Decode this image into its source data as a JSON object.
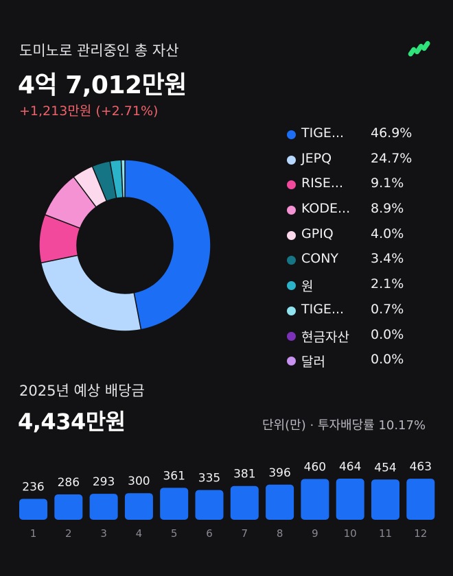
{
  "header": {
    "subtitle": "도미노로 관리중인 총 자산",
    "total": "4억 7,012만원",
    "change": "+1,213만원 (+2.71%)",
    "logo_icon": "app-logo-icon"
  },
  "legend": [
    {
      "name": "TIGE...",
      "pct": "46.9%",
      "color": "#1c6ef5"
    },
    {
      "name": "JEPQ",
      "pct": "24.7%",
      "color": "#b6d8ff"
    },
    {
      "name": "RISE...",
      "pct": "9.1%",
      "color": "#f3499d"
    },
    {
      "name": "KODE...",
      "pct": "8.9%",
      "color": "#f592d3"
    },
    {
      "name": "GPIQ",
      "pct": "4.0%",
      "color": "#fcd9ec"
    },
    {
      "name": "CONY",
      "pct": "3.4%",
      "color": "#157585"
    },
    {
      "name": "원",
      "pct": "2.1%",
      "color": "#2bb3c9"
    },
    {
      "name": "TIGE...",
      "pct": "0.7%",
      "color": "#8fe3ef"
    },
    {
      "name": "현금자산",
      "pct": "0.0%",
      "color": "#7b31b8"
    },
    {
      "name": "달러",
      "pct": "0.0%",
      "color": "#c892f0"
    }
  ],
  "dividend": {
    "title": "2025년 예상 배당금",
    "amount": "4,434만원",
    "unit_info": "단위(만) · 투자배당률 10.17%"
  },
  "chart_data": [
    {
      "type": "pie",
      "labels": [
        "TIGE...",
        "JEPQ",
        "RISE...",
        "KODE...",
        "GPIQ",
        "CONY",
        "원",
        "TIGE...",
        "현금자산",
        "달러"
      ],
      "values": [
        46.9,
        24.7,
        9.1,
        8.9,
        4.0,
        3.4,
        2.1,
        0.7,
        0.0,
        0.0
      ],
      "colors": [
        "#1c6ef5",
        "#b6d8ff",
        "#f3499d",
        "#f592d3",
        "#fcd9ec",
        "#157585",
        "#2bb3c9",
        "#8fe3ef",
        "#7b31b8",
        "#c892f0"
      ],
      "donut": true
    },
    {
      "type": "bar",
      "categories": [
        "1",
        "2",
        "3",
        "4",
        "5",
        "6",
        "7",
        "8",
        "9",
        "10",
        "11",
        "12"
      ],
      "values": [
        236,
        286,
        293,
        300,
        361,
        335,
        381,
        396,
        460,
        464,
        454,
        463
      ],
      "color": "#1c6ef5"
    }
  ]
}
